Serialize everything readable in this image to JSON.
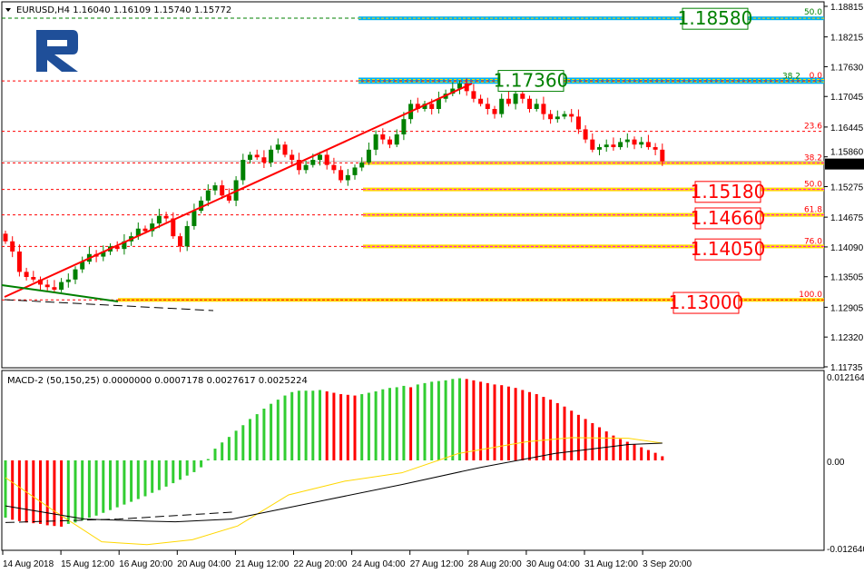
{
  "header": {
    "symbol": "EURUSD,H4",
    "open": "1.16040",
    "high": "1.16109",
    "low": "1.15740",
    "close": "1.15772"
  },
  "macd_label": "MACD-2 (50,150,25) 0.0000000 0.0007178 0.0027617 0.0025224",
  "logo_text": "R",
  "colors": {
    "bull": "#008000",
    "bear": "#ff0000",
    "hist_up": "#32cd32",
    "hist_down": "#ff0000",
    "signal": "#ffd700",
    "fib_band": "#ffd700",
    "blue_band": "#00b0f0"
  },
  "price_axis": {
    "ticks": [
      "1.18815",
      "1.18215",
      "1.17630",
      "1.17045",
      "1.16445",
      "1.15860",
      "1.15275",
      "1.14675",
      "1.14090",
      "1.13505",
      "1.12905",
      "1.12320",
      "1.11735"
    ],
    "current": "1.15772"
  },
  "macd_axis": {
    "ticks": [
      "0.012164",
      "0.00",
      "-0.012640"
    ]
  },
  "time_axis": [
    "14 Aug 2018",
    "15 Aug 12:00",
    "16 Aug 20:00",
    "20 Aug 04:00",
    "21 Aug 12:00",
    "22 Aug 20:00",
    "24 Aug 04:00",
    "27 Aug 12:00",
    "28 Aug 20:00",
    "30 Aug 04:00",
    "31 Aug 12:00",
    "3 Sep 20:00"
  ],
  "price_boxes": [
    {
      "label": "1.18580",
      "price": 1.1858,
      "color": "#008000"
    },
    {
      "label": "1.17360",
      "price": 1.1736,
      "color": "#008000"
    },
    {
      "label": "1.15180",
      "price": 1.1518,
      "color": "#ff0000"
    },
    {
      "label": "1.14660",
      "price": 1.1466,
      "color": "#ff0000"
    },
    {
      "label": "1.14050",
      "price": 1.1405,
      "color": "#ff0000"
    },
    {
      "label": "1.13000",
      "price": 1.13,
      "color": "#ff0000"
    }
  ],
  "fib_levels": [
    {
      "label": "0.0",
      "price": 1.1735
    },
    {
      "label": "23.6",
      "price": 1.1636
    },
    {
      "label": "38.2",
      "price": 1.1574
    },
    {
      "label": "50.0",
      "price": 1.1522
    },
    {
      "label": "61.8",
      "price": 1.1472
    },
    {
      "label": "76.0",
      "price": 1.141
    },
    {
      "label": "100.0",
      "price": 1.1305
    }
  ],
  "upper_fib_labels": [
    {
      "label": "50.0",
      "price": 1.1858
    },
    {
      "label": "38.2",
      "price": 1.1733
    }
  ],
  "chart_data": [
    {
      "type": "candlestick",
      "title": "EURUSD,H4",
      "ylim": [
        1.11735,
        1.18815
      ],
      "closes": [
        1.142,
        1.14,
        1.136,
        1.135,
        1.1345,
        1.1335,
        1.133,
        1.1325,
        1.134,
        1.1345,
        1.1365,
        1.138,
        1.1395,
        1.139,
        1.14,
        1.141,
        1.1405,
        1.142,
        1.143,
        1.1445,
        1.144,
        1.1455,
        1.147,
        1.1465,
        1.143,
        1.141,
        1.145,
        1.148,
        1.15,
        1.152,
        1.153,
        1.151,
        1.15,
        1.154,
        1.158,
        1.159,
        1.1585,
        1.1575,
        1.16,
        1.161,
        1.159,
        1.158,
        1.156,
        1.157,
        1.158,
        1.159,
        1.157,
        1.156,
        1.154,
        1.155,
        1.1565,
        1.1575,
        1.16,
        1.163,
        1.162,
        1.161,
        1.163,
        1.166,
        1.169,
        1.168,
        1.169,
        1.168,
        1.17,
        1.171,
        1.172,
        1.173,
        1.1715,
        1.17,
        1.169,
        1.168,
        1.167,
        1.17,
        1.169,
        1.171,
        1.17,
        1.168,
        1.169,
        1.167,
        1.166,
        1.1665,
        1.167,
        1.1665,
        1.164,
        1.162,
        1.16,
        1.1605,
        1.161,
        1.1605,
        1.1615,
        1.162,
        1.161,
        1.1615,
        1.1605,
        1.16,
        1.1577
      ],
      "open_first": 1.1435
    },
    {
      "type": "bar",
      "title": "MACD-2 (50,150,25)",
      "ylim": [
        -0.01264,
        0.012164
      ],
      "histogram": [
        -0.0083,
        -0.0086,
        -0.0088,
        -0.009,
        -0.0091,
        -0.0092,
        -0.0094,
        -0.0095,
        -0.0096,
        -0.0092,
        -0.009,
        -0.0087,
        -0.0083,
        -0.008,
        -0.0076,
        -0.0072,
        -0.0068,
        -0.0064,
        -0.006,
        -0.0056,
        -0.0052,
        -0.0047,
        -0.0043,
        -0.0038,
        -0.0033,
        -0.0028,
        -0.0022,
        -0.0017,
        -0.001,
        0.0002,
        0.0017,
        0.0026,
        0.0034,
        0.0043,
        0.0051,
        0.006,
        0.0067,
        0.0075,
        0.0082,
        0.0088,
        0.0094,
        0.0099,
        0.0101,
        0.0101,
        0.0101,
        0.0102,
        0.01,
        0.0098,
        0.0096,
        0.0095,
        0.0094,
        0.0096,
        0.0098,
        0.01,
        0.0103,
        0.0105,
        0.0106,
        0.0108,
        0.0106,
        0.011,
        0.0112,
        0.0114,
        0.0115,
        0.0116,
        0.0118,
        0.0119,
        0.0118,
        0.0116,
        0.0114,
        0.0112,
        0.011,
        0.0109,
        0.0107,
        0.0105,
        0.0102,
        0.0099,
        0.0096,
        0.0092,
        0.0088,
        0.0083,
        0.0078,
        0.0072,
        0.0066,
        0.006,
        0.0054,
        0.0048,
        0.0042,
        0.0036,
        0.0031,
        0.0027,
        0.0023,
        0.0019,
        0.0015,
        0.0011,
        0.0006
      ],
      "signal_yellow": [
        [
          0,
          -0.0025
        ],
        [
          8,
          -0.007
        ],
        [
          17,
          -0.0118
        ],
        [
          25,
          -0.0122
        ],
        [
          33,
          -0.0115
        ],
        [
          41,
          -0.0095
        ],
        [
          50,
          -0.005
        ],
        [
          60,
          -0.003
        ],
        [
          70,
          -0.0018
        ],
        [
          80,
          0.001
        ],
        [
          92,
          0.0027
        ],
        [
          100,
          0.0033
        ],
        [
          110,
          0.0032
        ],
        [
          116,
          0.0025
        ]
      ],
      "line_black": [
        [
          0,
          -0.0066
        ],
        [
          14,
          -0.0085
        ],
        [
          25,
          -0.0088
        ],
        [
          30,
          -0.0089
        ],
        [
          40,
          -0.0085
        ],
        [
          55,
          -0.006
        ],
        [
          70,
          -0.0035
        ],
        [
          84,
          -0.001
        ],
        [
          97,
          0.001
        ],
        [
          110,
          0.0023
        ],
        [
          116,
          0.0025
        ]
      ],
      "dashed_black": [
        [
          0,
          -0.009
        ],
        [
          20,
          -0.0085
        ],
        [
          40,
          -0.0075
        ]
      ]
    }
  ]
}
